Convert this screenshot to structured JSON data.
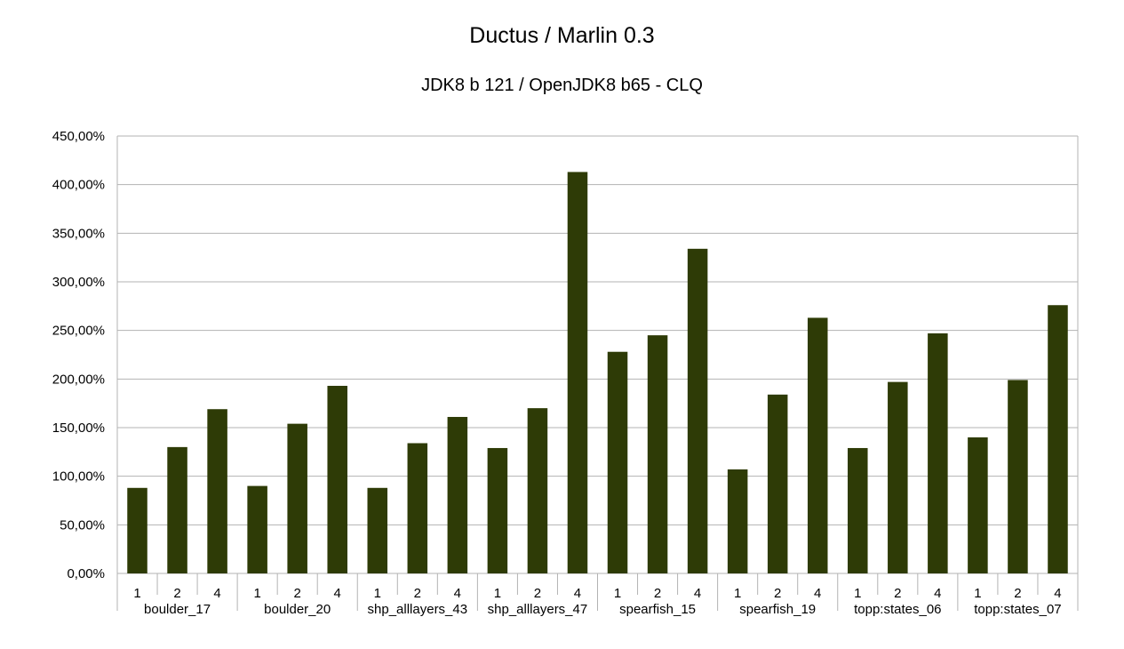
{
  "chart_data": {
    "type": "bar",
    "title": "Ductus / Marlin 0.3",
    "subtitle": "JDK8 b 121 / OpenJDK8 b65 - CLQ",
    "ylim": [
      0,
      450
    ],
    "ytick_step": 50,
    "ytick_labels": [
      "0,00%",
      "50,00%",
      "100,00%",
      "150,00%",
      "200,00%",
      "250,00%",
      "300,00%",
      "350,00%",
      "400,00%",
      "450,00%"
    ],
    "grid": true,
    "legend": "none",
    "groups": [
      "boulder_17",
      "boulder_20",
      "shp_alllayers_43",
      "shp_alllayers_47",
      "spearfish_15",
      "spearfish_19",
      "topp:states_06",
      "topp:states_07"
    ],
    "sub_categories": [
      "1",
      "2",
      "4"
    ],
    "values": [
      [
        88,
        130,
        169
      ],
      [
        90,
        154,
        193
      ],
      [
        88,
        134,
        161
      ],
      [
        129,
        170,
        413
      ],
      [
        228,
        245,
        334
      ],
      [
        107,
        184,
        263
      ],
      [
        129,
        197,
        247
      ],
      [
        140,
        199,
        276
      ]
    ],
    "colors": {
      "bar": "#2e3b06",
      "grid": "#b3b3b3",
      "axis": "#b3b3b3"
    }
  }
}
